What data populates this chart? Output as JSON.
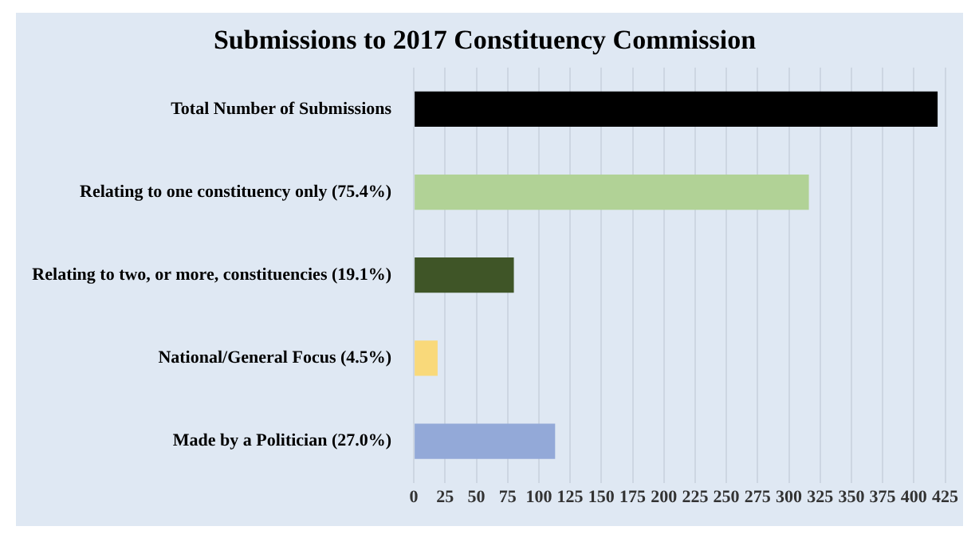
{
  "chart_data": {
    "type": "bar",
    "orientation": "horizontal",
    "title": "Submissions to 2017 Constituency Commission",
    "categories": [
      "Total Number of Submissions",
      "Relating to one constituency only (75.4%)",
      "Relating to two, or more, constituencies (19.1%)",
      "National/General Focus (4.5%)",
      "Made by a Politician (27.0%)"
    ],
    "values": [
      419,
      316,
      80,
      19,
      113
    ],
    "colors": [
      "#000000",
      "#b1d296",
      "#3f5527",
      "#f9d97a",
      "#93a9d8"
    ],
    "xlim": [
      0,
      425
    ],
    "xticks": [
      0,
      25,
      50,
      75,
      100,
      125,
      150,
      175,
      200,
      225,
      250,
      275,
      300,
      325,
      350,
      375,
      400,
      425
    ],
    "grid": "x",
    "legend": false
  }
}
